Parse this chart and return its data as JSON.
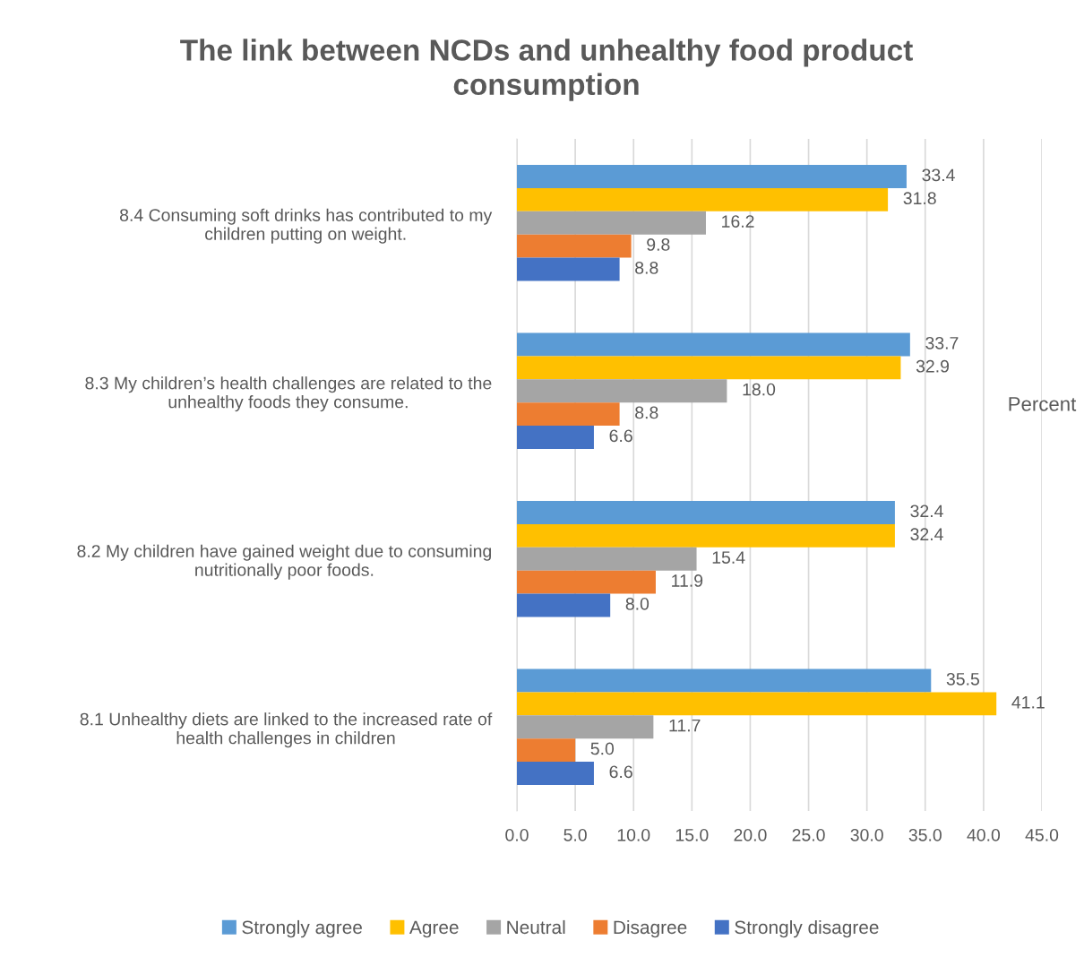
{
  "chart_data": {
    "type": "bar",
    "orientation": "horizontal",
    "title": "The link between NCDs and unhealthy food product consumption",
    "xlabel": "Percent",
    "categories": [
      "8.4 Consuming soft drinks has contributed to my children putting on weight.",
      "8.3 My children’s health challenges are related to the unhealthy foods they consume.",
      "8.2 My children have gained weight due to consuming nutritionally poor foods.",
      "8.1 Unhealthy diets are linked to the increased rate of health challenges in children"
    ],
    "series": [
      {
        "name": "Strongly agree",
        "color": "#5b9bd5",
        "values": [
          33.4,
          33.7,
          32.4,
          35.5
        ],
        "value_labels": [
          "33.4",
          "33.7",
          "32.4",
          "35.5"
        ]
      },
      {
        "name": "Agree",
        "color": "#ffc000",
        "values": [
          31.8,
          32.9,
          32.4,
          41.1
        ],
        "value_labels": [
          "31.8",
          "32.9",
          "32.4",
          "41.1"
        ]
      },
      {
        "name": "Neutral",
        "color": "#a5a5a5",
        "values": [
          16.2,
          18.0,
          15.4,
          11.7
        ],
        "value_labels": [
          "16.2",
          "18.0",
          "15.4",
          "11.7"
        ]
      },
      {
        "name": "Disagree",
        "color": "#ed7d31",
        "values": [
          9.8,
          8.8,
          11.9,
          5.0
        ],
        "value_labels": [
          "9.8",
          "8.8",
          "11.9",
          "5.0"
        ]
      },
      {
        "name": "Strongly disagree",
        "color": "#4472c4",
        "values": [
          8.8,
          6.6,
          8.0,
          6.6
        ],
        "value_labels": [
          "8.8",
          "6.6",
          "8.0",
          "6.6"
        ]
      }
    ],
    "xlim": [
      0,
      45
    ],
    "xticks": [
      {
        "value": 0,
        "label": "0.0"
      },
      {
        "value": 5,
        "label": "5.0"
      },
      {
        "value": 10,
        "label": "10.0"
      },
      {
        "value": 15,
        "label": "15.0"
      },
      {
        "value": 20,
        "label": "20.0"
      },
      {
        "value": 25,
        "label": "25.0"
      },
      {
        "value": 30,
        "label": "30.0"
      },
      {
        "value": 35,
        "label": "35.0"
      },
      {
        "value": 40,
        "label": "40.0"
      },
      {
        "value": 45,
        "label": "45.0"
      }
    ],
    "grid": "x",
    "legend": "bottom"
  }
}
